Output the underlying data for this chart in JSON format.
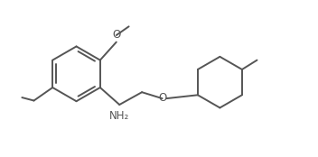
{
  "background_color": "#ffffff",
  "line_color": "#555555",
  "line_width": 1.4,
  "text_color": "#555555",
  "font_size": 8.5,
  "figsize": [
    3.52,
    1.74
  ],
  "dpi": 100,
  "xlim": [
    0,
    10
  ],
  "ylim": [
    0,
    5
  ]
}
